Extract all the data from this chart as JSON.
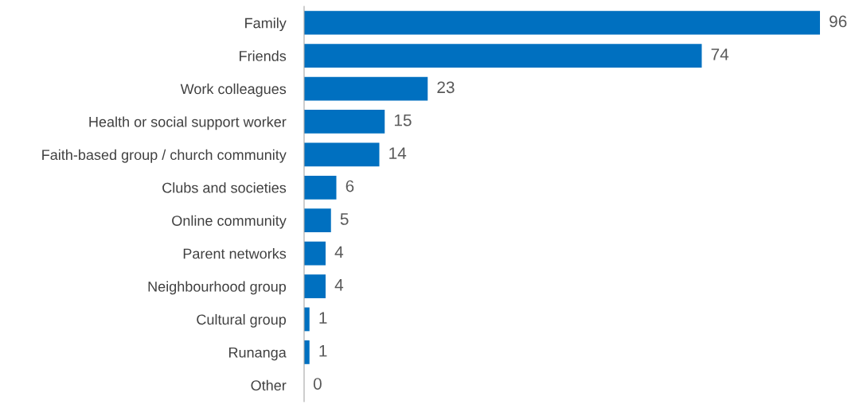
{
  "chart_data": {
    "type": "bar",
    "orientation": "horizontal",
    "categories": [
      "Family",
      "Friends",
      "Work colleagues",
      "Health or social support worker",
      "Faith-based group / church community",
      "Clubs and societies",
      "Online community",
      "Parent networks",
      "Neighbourhood group",
      "Cultural group",
      "Runanga",
      "Other"
    ],
    "values": [
      96,
      74,
      23,
      15,
      14,
      6,
      5,
      4,
      4,
      1,
      1,
      0
    ],
    "color": "#0070c0",
    "data_labels": true,
    "grid": false,
    "legend": false,
    "tick_labels": "y"
  }
}
